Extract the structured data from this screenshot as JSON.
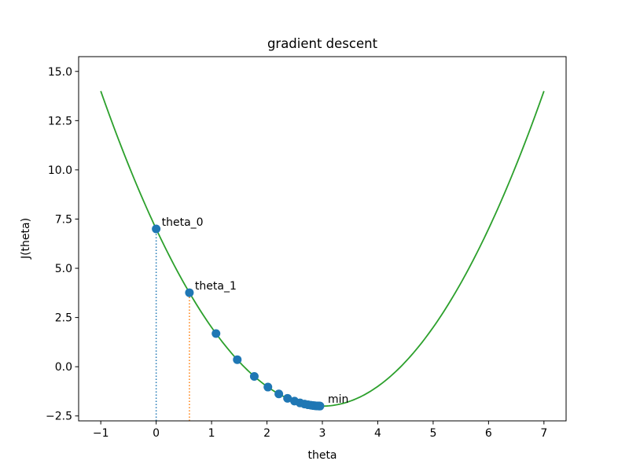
{
  "chart_data": {
    "type": "line",
    "title": "gradient descent",
    "xlabel": "theta",
    "ylabel": "J(theta)",
    "xlim": [
      -1.4,
      7.4
    ],
    "ylim": [
      -2.75,
      15.75
    ],
    "xticks": [
      -1,
      0,
      1,
      2,
      3,
      4,
      5,
      6,
      7
    ],
    "xtick_labels": [
      "−1",
      "0",
      "1",
      "2",
      "3",
      "4",
      "5",
      "6",
      "7"
    ],
    "yticks": [
      -2.5,
      0.0,
      2.5,
      5.0,
      7.5,
      10.0,
      12.5,
      15.0
    ],
    "ytick_labels": [
      "−2.5",
      "0.0",
      "2.5",
      "5.0",
      "7.5",
      "10.0",
      "12.5",
      "15.0"
    ],
    "grid": false,
    "curve": {
      "function": "J(theta) = (theta - 3)^2 - 2",
      "x_range": [
        -1,
        7
      ],
      "color": "#2ca02c"
    },
    "descent_points": {
      "color": "#1f77b4",
      "x": [
        0.0,
        0.6,
        1.08,
        1.464,
        1.771,
        2.017,
        2.214,
        2.371,
        2.497,
        2.597,
        2.678,
        2.742,
        2.794,
        2.835,
        2.868,
        2.894,
        2.916,
        2.932,
        2.946,
        2.957
      ],
      "y": [
        7.0,
        3.76,
        1.686,
        0.359,
        -0.49,
        -1.034,
        -1.382,
        -1.604,
        -1.747,
        -1.838,
        -1.896,
        -1.933,
        -1.957,
        -1.973,
        -1.983,
        -1.989,
        -1.993,
        -1.995,
        -1.997,
        -1.998
      ]
    },
    "guides": [
      {
        "x": 0.0,
        "y": 7.0,
        "color": "#1f77b4",
        "style": "dotted"
      },
      {
        "x": 0.6,
        "y": 3.76,
        "color": "#ff7f0e",
        "style": "dotted"
      }
    ],
    "annotations": [
      {
        "text": "theta_0",
        "x": 0.0,
        "y": 7.0
      },
      {
        "text": "theta_1",
        "x": 0.6,
        "y": 3.76
      },
      {
        "text": "min",
        "x": 3.0,
        "y": -2.0
      }
    ]
  }
}
